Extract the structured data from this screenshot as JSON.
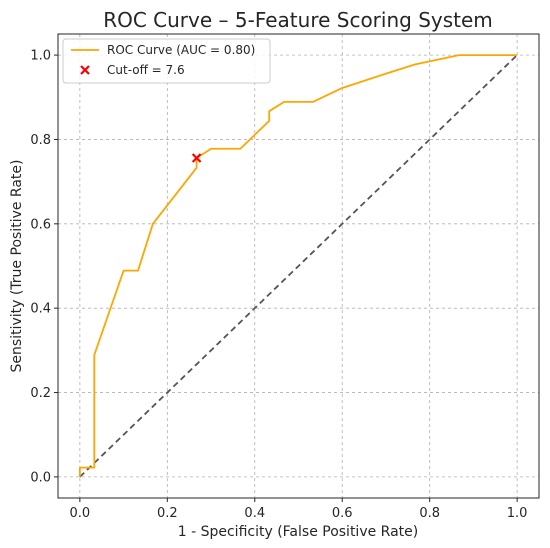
{
  "chart_data": {
    "type": "line",
    "title": "ROC Curve – 5-Feature Scoring System",
    "xlabel": "1 - Specificity (False Positive Rate)",
    "ylabel": "Sensitivity (True Positive Rate)",
    "xlim": [
      -0.05,
      1.05
    ],
    "ylim": [
      -0.05,
      1.05
    ],
    "xticks": [
      0.0,
      0.2,
      0.4,
      0.6,
      0.8,
      1.0
    ],
    "yticks": [
      0.0,
      0.2,
      0.4,
      0.6,
      0.8,
      1.0
    ],
    "xtick_labels": [
      "0.0",
      "0.2",
      "0.4",
      "0.6",
      "0.8",
      "1.0"
    ],
    "ytick_labels": [
      "0.0",
      "0.2",
      "0.4",
      "0.6",
      "0.8",
      "1.0"
    ],
    "grid": true,
    "legend_position": "top-left",
    "series": [
      {
        "name": "ROC Curve (AUC = 0.80)",
        "color": "#FFA500",
        "style": "solid",
        "x": [
          0.0,
          0.0,
          0.033,
          0.033,
          0.033,
          0.1,
          0.133,
          0.167,
          0.267,
          0.267,
          0.3,
          0.367,
          0.433,
          0.433,
          0.467,
          0.533,
          0.6,
          0.7,
          0.767,
          0.867,
          1.0
        ],
        "y": [
          0.0,
          0.022,
          0.022,
          0.289,
          0.289,
          0.489,
          0.489,
          0.6,
          0.733,
          0.756,
          0.778,
          0.778,
          0.844,
          0.867,
          0.889,
          0.889,
          0.922,
          0.956,
          0.978,
          1.0,
          1.0
        ]
      },
      {
        "name": "",
        "color": "#555555",
        "style": "dashed",
        "x": [
          0.0,
          1.0
        ],
        "y": [
          0.0,
          1.0
        ]
      }
    ],
    "markers": [
      {
        "name": "Cut-off = 7.6",
        "x": 0.267,
        "y": 0.756,
        "color": "#FF0000",
        "symbol": "x"
      }
    ]
  }
}
